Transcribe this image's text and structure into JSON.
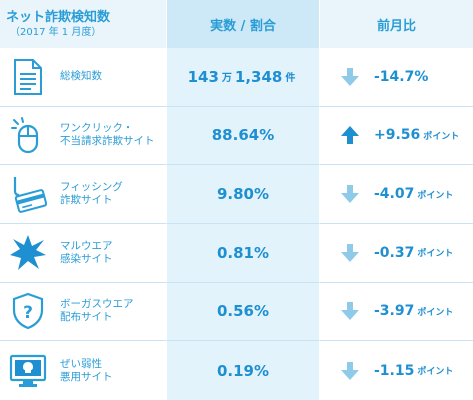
{
  "header": {
    "title": "ネット詐欺検知数",
    "subtitle": "（2017 年 1 月度）",
    "col_count": "実数 / 割合",
    "col_change": "前月比"
  },
  "rows": [
    {
      "label_lines": [
        "総検知数"
      ],
      "icon": "document-icon",
      "value": "143",
      "value_unit_1": "万",
      "value_2": "1,348",
      "value_unit_2": "件",
      "direction": "down",
      "change": "-14.7%",
      "change_unit": ""
    },
    {
      "label_lines": [
        "ワンクリック・",
        "不当請求詐欺サイト"
      ],
      "icon": "mouse-click-icon",
      "value": "88.64%",
      "direction": "up",
      "change": "+9.56",
      "change_unit": "ポイント"
    },
    {
      "label_lines": [
        "フィッシング",
        "詐欺サイト"
      ],
      "icon": "phishing-card-icon",
      "value": "9.80%",
      "direction": "down",
      "change": "-4.07",
      "change_unit": "ポイント"
    },
    {
      "label_lines": [
        "マルウエア",
        "感染サイト"
      ],
      "icon": "malware-burst-icon",
      "value": "0.81%",
      "direction": "down",
      "change": "-0.37",
      "change_unit": "ポイント"
    },
    {
      "label_lines": [
        "ボーガスウエア",
        "配布サイト"
      ],
      "icon": "bogus-shield-icon",
      "value": "0.56%",
      "direction": "down",
      "change": "-3.97",
      "change_unit": "ポイント"
    },
    {
      "label_lines": [
        "ぜい弱性",
        "悪用サイト"
      ],
      "icon": "vulnerable-monitor-icon",
      "value": "0.19%",
      "direction": "down",
      "change": "-1.15",
      "change_unit": "ポイント"
    }
  ],
  "colors": {
    "accent": "#2a9dd6",
    "down_arrow": "#8fcbe8",
    "up_arrow": "#1e8fd1"
  }
}
